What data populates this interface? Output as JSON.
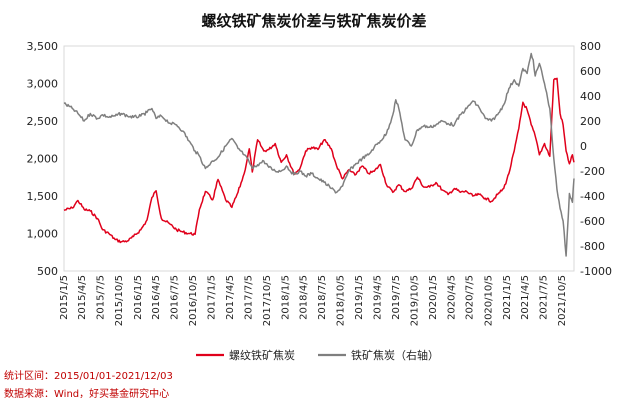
{
  "chart_data": {
    "type": "line",
    "title": "螺纹铁矿焦炭价差与铁矿焦炭价差",
    "left_axis": {
      "ylim": [
        500,
        3500
      ],
      "ticks": [
        "500",
        "1,000",
        "1,500",
        "2,000",
        "2,500",
        "3,000",
        "3,500"
      ]
    },
    "right_axis": {
      "ylim": [
        -1000,
        800
      ],
      "ticks": [
        "-1000",
        "-800",
        "-600",
        "-400",
        "-200",
        "0",
        "200",
        "400",
        "600",
        "800"
      ]
    },
    "x_ticks": [
      "2015/1/5",
      "2015/4/5",
      "2015/7/5",
      "2015/10/5",
      "2016/1/5",
      "2016/4/5",
      "2016/7/5",
      "2016/10/5",
      "2017/1/5",
      "2017/4/5",
      "2017/7/5",
      "2017/10/5",
      "2018/1/5",
      "2018/4/5",
      "2018/7/5",
      "2018/10/5",
      "2019/1/5",
      "2019/4/5",
      "2019/7/5",
      "2019/10/5",
      "2020/1/5",
      "2020/4/5",
      "2020/7/5",
      "2020/10/5",
      "2021/1/5",
      "2021/4/5",
      "2021/7/5",
      "2021/10/5"
    ],
    "grid": false,
    "legend_position": "bottom",
    "series": [
      {
        "name": "螺纹铁矿焦炭",
        "axis": "left",
        "color": "#e0001b",
        "points": [
          [
            "2015-01-05",
            1310
          ],
          [
            "2015-02-15",
            1340
          ],
          [
            "2015-03-15",
            1440
          ],
          [
            "2015-04-15",
            1320
          ],
          [
            "2015-05-15",
            1300
          ],
          [
            "2015-06-20",
            1200
          ],
          [
            "2015-07-15",
            1050
          ],
          [
            "2015-08-15",
            1000
          ],
          [
            "2015-09-15",
            920
          ],
          [
            "2015-10-15",
            890
          ],
          [
            "2015-11-15",
            900
          ],
          [
            "2015-12-15",
            960
          ],
          [
            "2016-01-20",
            1050
          ],
          [
            "2016-02-20",
            1180
          ],
          [
            "2016-03-15",
            1480
          ],
          [
            "2016-04-05",
            1570
          ],
          [
            "2016-05-01",
            1200
          ],
          [
            "2016-06-15",
            1120
          ],
          [
            "2016-07-15",
            1050
          ],
          [
            "2016-08-15",
            1020
          ],
          [
            "2016-09-15",
            1000
          ],
          [
            "2016-10-15",
            990
          ],
          [
            "2016-11-05",
            1320
          ],
          [
            "2016-12-05",
            1560
          ],
          [
            "2017-01-10",
            1450
          ],
          [
            "2017-02-05",
            1720
          ],
          [
            "2017-03-15",
            1450
          ],
          [
            "2017-04-15",
            1350
          ],
          [
            "2017-05-15",
            1550
          ],
          [
            "2017-06-15",
            1800
          ],
          [
            "2017-07-10",
            2130
          ],
          [
            "2017-07-25",
            1820
          ],
          [
            "2017-08-20",
            2250
          ],
          [
            "2017-09-20",
            2100
          ],
          [
            "2017-10-15",
            2120
          ],
          [
            "2017-11-15",
            2200
          ],
          [
            "2017-12-15",
            1950
          ],
          [
            "2018-01-10",
            2050
          ],
          [
            "2018-02-15",
            1800
          ],
          [
            "2018-03-15",
            1850
          ],
          [
            "2018-04-15",
            2100
          ],
          [
            "2018-05-15",
            2150
          ],
          [
            "2018-06-15",
            2120
          ],
          [
            "2018-07-15",
            2250
          ],
          [
            "2018-08-20",
            2130
          ],
          [
            "2018-09-15",
            1900
          ],
          [
            "2018-10-15",
            1730
          ],
          [
            "2018-11-15",
            1850
          ],
          [
            "2018-12-15",
            1780
          ],
          [
            "2019-01-20",
            1900
          ],
          [
            "2019-02-20",
            1800
          ],
          [
            "2019-03-20",
            1830
          ],
          [
            "2019-04-20",
            1920
          ],
          [
            "2019-05-20",
            1650
          ],
          [
            "2019-06-20",
            1550
          ],
          [
            "2019-07-20",
            1650
          ],
          [
            "2019-08-20",
            1560
          ],
          [
            "2019-09-20",
            1600
          ],
          [
            "2019-10-20",
            1750
          ],
          [
            "2019-11-20",
            1620
          ],
          [
            "2019-12-20",
            1620
          ],
          [
            "2020-01-20",
            1680
          ],
          [
            "2020-02-20",
            1580
          ],
          [
            "2020-03-20",
            1520
          ],
          [
            "2020-04-20",
            1600
          ],
          [
            "2020-05-20",
            1550
          ],
          [
            "2020-06-20",
            1560
          ],
          [
            "2020-07-20",
            1500
          ],
          [
            "2020-08-20",
            1520
          ],
          [
            "2020-09-20",
            1470
          ],
          [
            "2020-10-20",
            1430
          ],
          [
            "2020-11-20",
            1520
          ],
          [
            "2020-12-20",
            1600
          ],
          [
            "2021-01-15",
            1800
          ],
          [
            "2021-02-10",
            2100
          ],
          [
            "2021-03-05",
            2400
          ],
          [
            "2021-03-25",
            2750
          ],
          [
            "2021-04-15",
            2650
          ],
          [
            "2021-05-05",
            2450
          ],
          [
            "2021-05-25",
            2300
          ],
          [
            "2021-06-15",
            2050
          ],
          [
            "2021-07-10",
            2200
          ],
          [
            "2021-08-05",
            2030
          ],
          [
            "2021-08-25",
            3050
          ],
          [
            "2021-09-10",
            3070
          ],
          [
            "2021-09-25",
            2600
          ],
          [
            "2021-10-10",
            2450
          ],
          [
            "2021-10-25",
            2100
          ],
          [
            "2021-11-10",
            1930
          ],
          [
            "2021-11-25",
            2050
          ],
          [
            "2021-12-03",
            1950
          ]
        ]
      },
      {
        "name": "铁矿焦炭（右轴）",
        "axis": "right",
        "color": "#7f7f7f",
        "points": [
          [
            "2015-01-05",
            340
          ],
          [
            "2015-02-15",
            300
          ],
          [
            "2015-03-15",
            260
          ],
          [
            "2015-04-15",
            200
          ],
          [
            "2015-05-15",
            260
          ],
          [
            "2015-06-20",
            220
          ],
          [
            "2015-07-15",
            250
          ],
          [
            "2015-08-15",
            230
          ],
          [
            "2015-09-15",
            240
          ],
          [
            "2015-10-15",
            260
          ],
          [
            "2015-11-15",
            240
          ],
          [
            "2015-12-15",
            230
          ],
          [
            "2016-01-20",
            240
          ],
          [
            "2016-02-20",
            270
          ],
          [
            "2016-03-15",
            300
          ],
          [
            "2016-04-05",
            220
          ],
          [
            "2016-05-01",
            240
          ],
          [
            "2016-06-15",
            180
          ],
          [
            "2016-07-15",
            170
          ],
          [
            "2016-08-15",
            120
          ],
          [
            "2016-09-15",
            40
          ],
          [
            "2016-10-15",
            -40
          ],
          [
            "2016-11-05",
            -80
          ],
          [
            "2016-12-05",
            -180
          ],
          [
            "2017-01-10",
            -120
          ],
          [
            "2017-02-05",
            -90
          ],
          [
            "2017-03-15",
            0
          ],
          [
            "2017-04-15",
            60
          ],
          [
            "2017-05-15",
            -20
          ],
          [
            "2017-06-15",
            -70
          ],
          [
            "2017-07-10",
            -130
          ],
          [
            "2017-07-25",
            -180
          ],
          [
            "2017-08-20",
            -150
          ],
          [
            "2017-09-20",
            -120
          ],
          [
            "2017-10-15",
            -170
          ],
          [
            "2017-11-15",
            -200
          ],
          [
            "2017-12-15",
            -200
          ],
          [
            "2018-01-10",
            -160
          ],
          [
            "2018-02-15",
            -230
          ],
          [
            "2018-03-15",
            -200
          ],
          [
            "2018-04-15",
            -240
          ],
          [
            "2018-05-15",
            -220
          ],
          [
            "2018-06-15",
            -260
          ],
          [
            "2018-07-15",
            -290
          ],
          [
            "2018-08-20",
            -340
          ],
          [
            "2018-09-15",
            -370
          ],
          [
            "2018-10-15",
            -320
          ],
          [
            "2018-11-15",
            -200
          ],
          [
            "2018-12-15",
            -150
          ],
          [
            "2019-01-20",
            -100
          ],
          [
            "2019-02-20",
            -70
          ],
          [
            "2019-03-20",
            -10
          ],
          [
            "2019-04-20",
            40
          ],
          [
            "2019-05-20",
            100
          ],
          [
            "2019-06-20",
            250
          ],
          [
            "2019-07-05",
            370
          ],
          [
            "2019-07-20",
            300
          ],
          [
            "2019-08-20",
            50
          ],
          [
            "2019-09-20",
            0
          ],
          [
            "2019-10-20",
            130
          ],
          [
            "2019-11-20",
            160
          ],
          [
            "2019-12-20",
            150
          ],
          [
            "2020-01-20",
            170
          ],
          [
            "2020-02-20",
            200
          ],
          [
            "2020-03-20",
            180
          ],
          [
            "2020-04-20",
            170
          ],
          [
            "2020-05-20",
            250
          ],
          [
            "2020-06-20",
            300
          ],
          [
            "2020-07-20",
            360
          ],
          [
            "2020-08-20",
            310
          ],
          [
            "2020-09-20",
            220
          ],
          [
            "2020-10-20",
            200
          ],
          [
            "2020-11-20",
            250
          ],
          [
            "2020-12-20",
            330
          ],
          [
            "2021-01-15",
            460
          ],
          [
            "2021-02-10",
            530
          ],
          [
            "2021-03-05",
            480
          ],
          [
            "2021-03-25",
            620
          ],
          [
            "2021-04-15",
            580
          ],
          [
            "2021-05-05",
            740
          ],
          [
            "2021-05-15",
            690
          ],
          [
            "2021-05-25",
            560
          ],
          [
            "2021-06-15",
            660
          ],
          [
            "2021-07-10",
            500
          ],
          [
            "2021-08-05",
            300
          ],
          [
            "2021-08-25",
            -100
          ],
          [
            "2021-09-10",
            -350
          ],
          [
            "2021-09-25",
            -500
          ],
          [
            "2021-10-10",
            -600
          ],
          [
            "2021-10-25",
            -880
          ],
          [
            "2021-11-10",
            -380
          ],
          [
            "2021-11-25",
            -450
          ],
          [
            "2021-12-03",
            -260
          ]
        ]
      }
    ]
  },
  "footer": {
    "range_label": "统计区间：2015/01/01-2021/12/03",
    "source_label": "数据来源：Wind，好买基金研究中心"
  }
}
